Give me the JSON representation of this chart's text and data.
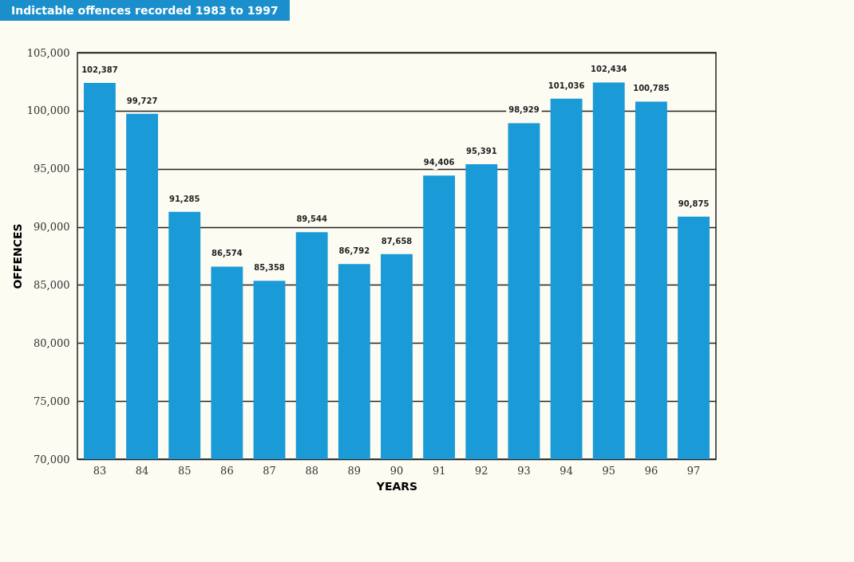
{
  "chart_data": {
    "type": "bar",
    "title": "Indictable offences recorded 1983 to 1997",
    "xlabel": "YEARS",
    "ylabel": "OFFENCES",
    "categories": [
      "83",
      "84",
      "85",
      "86",
      "87",
      "88",
      "89",
      "90",
      "91",
      "92",
      "93",
      "94",
      "95",
      "96",
      "97"
    ],
    "values": [
      102387,
      99727,
      91285,
      86574,
      85358,
      89544,
      86792,
      87658,
      94406,
      95391,
      98929,
      101036,
      102434,
      100785,
      90875
    ],
    "value_labels": [
      "102,387",
      "99,727",
      "91,285",
      "86,574",
      "85,358",
      "89,544",
      "86,792",
      "87,658",
      "94,406",
      "95,391",
      "98,929",
      "101,036",
      "102,434",
      "100,785",
      "90,875"
    ],
    "color": "#1a9ad6",
    "ylim": [
      70000,
      105000
    ],
    "yticks": [
      {
        "value": 70000,
        "label": "70,000"
      },
      {
        "value": 75000,
        "label": "75,000"
      },
      {
        "value": 80000,
        "label": "80,000"
      },
      {
        "value": 85000,
        "label": "85,000"
      },
      {
        "value": 90000,
        "label": "90,000"
      },
      {
        "value": 95000,
        "label": "95,000"
      },
      {
        "value": 100000,
        "label": "100,000"
      },
      {
        "value": 105000,
        "label": "105,000"
      }
    ],
    "grid": "y"
  }
}
